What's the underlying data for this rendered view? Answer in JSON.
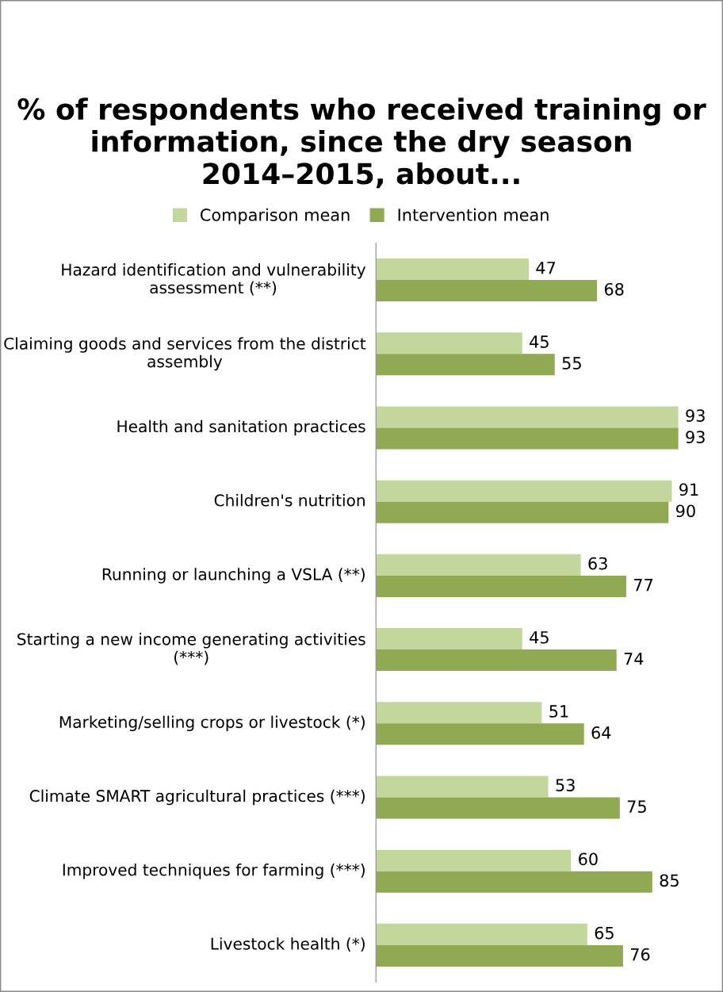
{
  "chart_data": {
    "type": "bar",
    "orientation": "horizontal",
    "title": "% of respondents who received training or information, since the dry season 2014–2015, about...",
    "categories": [
      "Hazard identification and vulnerability assessment (**)",
      "Claiming goods and services from the district assembly",
      "Health and sanitation practices",
      "Children's nutrition",
      "Running or launching a VSLA (**)",
      "Starting a new income generating activities (***)",
      "Marketing/selling crops or livestock (*)",
      "Climate SMART agricultural practices (***)",
      "Improved techniques for farming (***)",
      "Livestock health (*)"
    ],
    "series": [
      {
        "name": "Comparison mean",
        "color": "#c3d69b",
        "values": [
          47,
          45,
          93,
          91,
          63,
          45,
          51,
          53,
          60,
          65
        ]
      },
      {
        "name": "Intervention mean",
        "color": "#8faa52",
        "values": [
          68,
          55,
          93,
          90,
          77,
          74,
          64,
          75,
          85,
          76
        ]
      }
    ],
    "data_labels": true,
    "legend": "top",
    "tick_labels": "y"
  }
}
